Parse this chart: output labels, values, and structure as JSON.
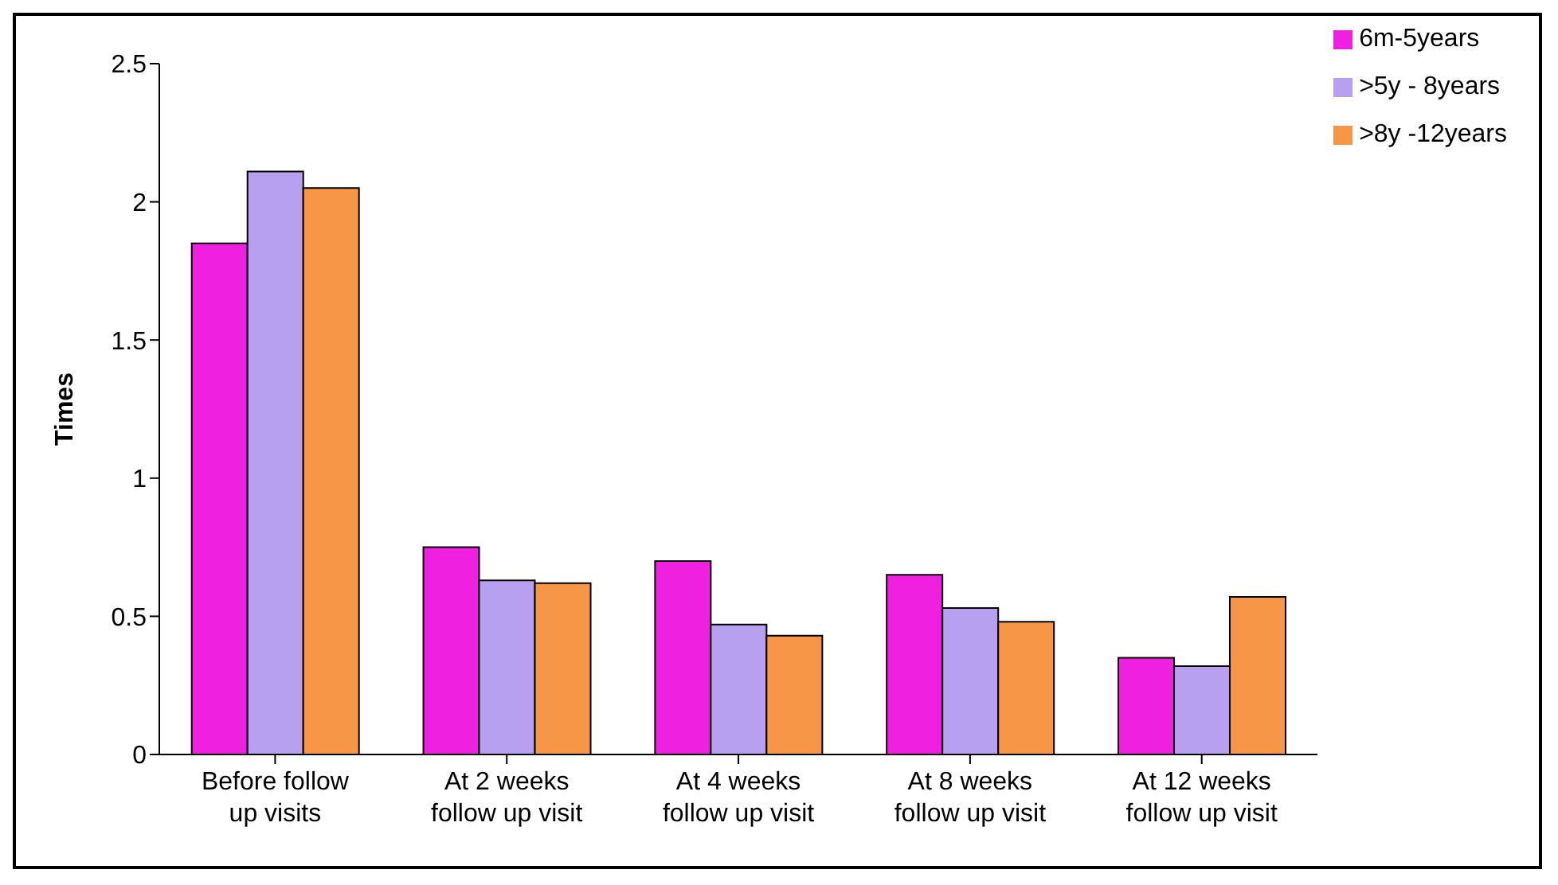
{
  "chart_data": {
    "type": "bar",
    "ylabel": "Times",
    "categories": [
      "Before follow up visits",
      "At 2 weeks follow up visit",
      "At 4 weeks follow up visit",
      "At 8 weeks follow up visit",
      "At 12 weeks follow up visit"
    ],
    "series": [
      {
        "name": "6m-5years",
        "color": "#f020e0",
        "values": [
          1.85,
          0.75,
          0.7,
          0.65,
          0.35
        ]
      },
      {
        "name": ">5y  - 8years",
        "color": "#b8a0f0",
        "values": [
          2.11,
          0.63,
          0.47,
          0.53,
          0.32
        ]
      },
      {
        "name": ">8y -12years",
        "color": "#f79646",
        "values": [
          2.05,
          0.62,
          0.43,
          0.48,
          0.57
        ]
      }
    ],
    "ylim": [
      0,
      2.5
    ],
    "yticks": [
      0,
      0.5,
      1,
      1.5,
      2,
      2.5
    ],
    "grid": false,
    "legend": "top right"
  }
}
